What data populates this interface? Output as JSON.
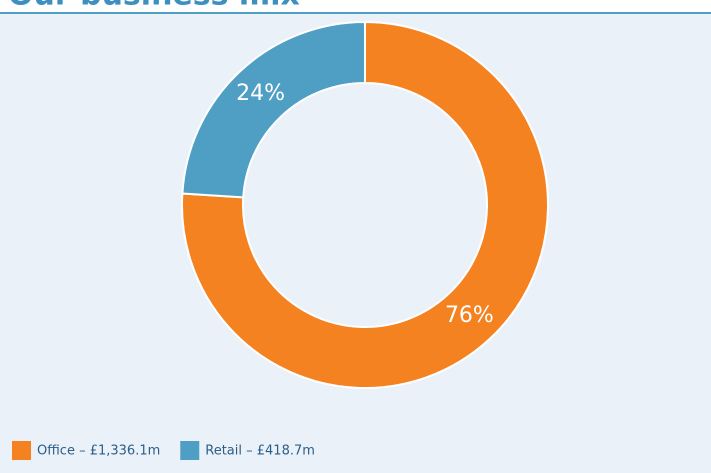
{
  "chart_data": {
    "type": "donut",
    "title": "Our business mix",
    "categories": [
      "Office – £1,336.1m",
      "Retail – £418.7m"
    ],
    "values": [
      76,
      24
    ],
    "value_labels": [
      "76%",
      "24%"
    ],
    "colors": [
      "#f58220",
      "#4f9ec4"
    ],
    "legend": "bottom-left"
  }
}
